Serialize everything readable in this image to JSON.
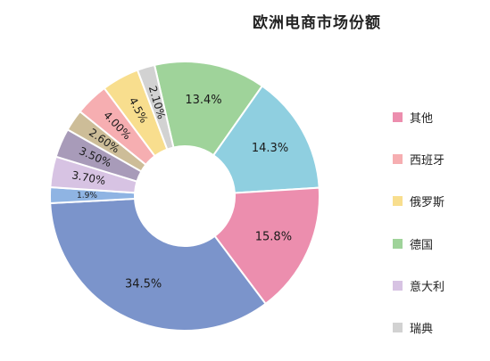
{
  "chart_data": {
    "type": "donut",
    "title": "欧洲电商市场份额",
    "slices": [
      {
        "label": "13.4%",
        "value": 13.4,
        "color": "#9fd39a"
      },
      {
        "label": "14.3%",
        "value": 14.3,
        "color": "#8fcfe0"
      },
      {
        "label": "15.8%",
        "value": 15.8,
        "color": "#ec8eae"
      },
      {
        "label": "34.5%",
        "value": 34.5,
        "color": "#7b94cb"
      },
      {
        "label": "1.9%",
        "value": 1.9,
        "color": "#8fb4e3"
      },
      {
        "label": "3.70%",
        "value": 3.7,
        "color": "#d7c3e3"
      },
      {
        "label": "3.50%",
        "value": 3.5,
        "color": "#a89bb9"
      },
      {
        "label": "2.60%",
        "value": 2.6,
        "color": "#cdbd98"
      },
      {
        "label": "4.00%",
        "value": 4.0,
        "color": "#f6aeb1"
      },
      {
        "label": "4.5%",
        "value": 4.5,
        "color": "#f8de8e"
      },
      {
        "label": "2.10%",
        "value": 2.1,
        "color": "#d2d2d2"
      }
    ],
    "legend": [
      {
        "name": "其他",
        "color": "#ec8eae"
      },
      {
        "name": "西班牙",
        "color": "#f6aeb1"
      },
      {
        "name": "俄罗斯",
        "color": "#f8de8e"
      },
      {
        "name": "德国",
        "color": "#9fd39a"
      },
      {
        "name": "意大利",
        "color": "#d7c3e3"
      },
      {
        "name": "瑞典",
        "color": "#d2d2d2"
      }
    ],
    "legend_position": "right"
  }
}
